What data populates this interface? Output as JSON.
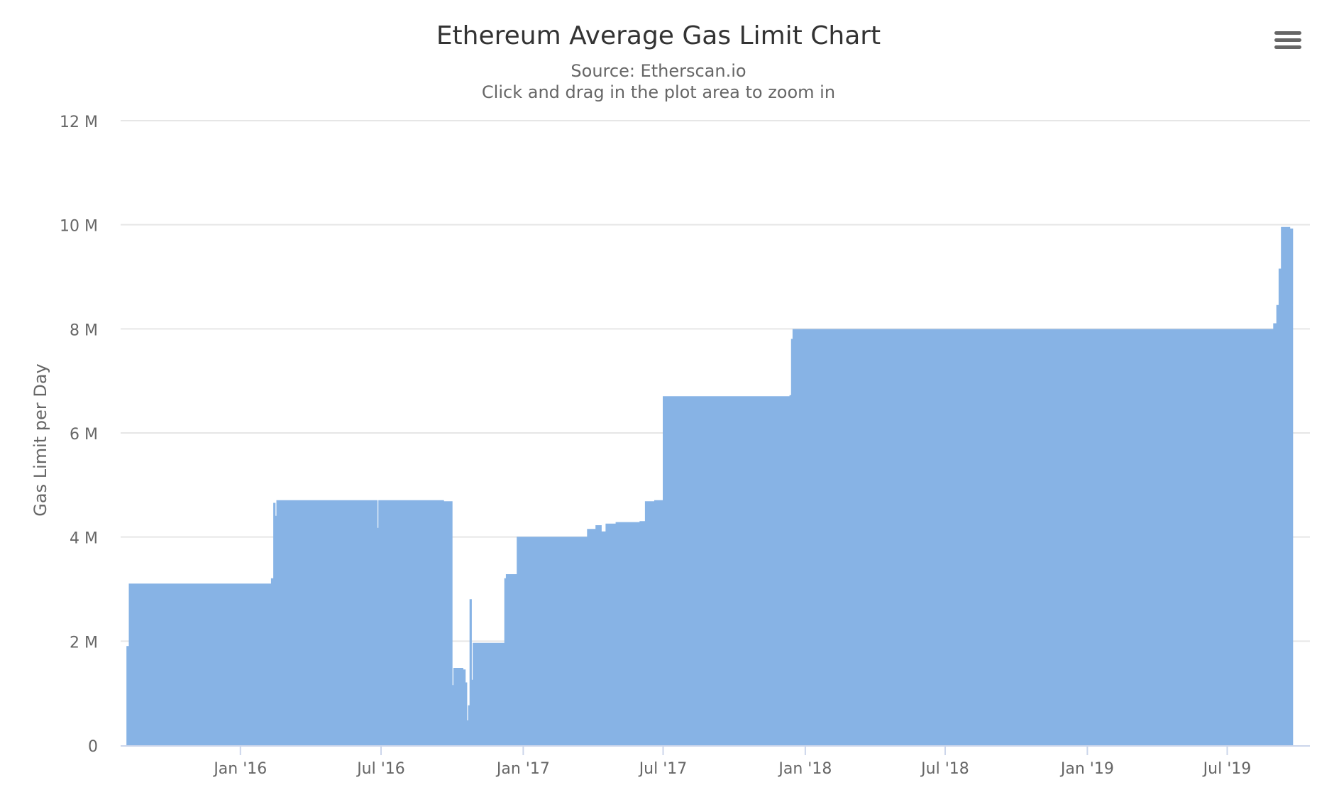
{
  "colors": {
    "series": "#87b3e5",
    "grid": "#e6e6e6",
    "axis_text": "#666666",
    "title_text": "#333333"
  },
  "toolbar": {
    "menu_icon": "hamburger-menu-icon"
  },
  "chart_data": {
    "type": "area",
    "title": "Ethereum Average Gas Limit Chart",
    "subtitle": "Source: Etherscan.io",
    "subtitle2": "Click and drag in the plot area to zoom in",
    "xlabel": "",
    "ylabel": "Gas Limit per Day",
    "x_type": "date",
    "xlim": [
      "2015-07-30",
      "2019-10-16"
    ],
    "ylim": [
      0,
      12000000
    ],
    "yticks": [
      0,
      2000000,
      4000000,
      6000000,
      8000000,
      10000000,
      12000000
    ],
    "ytick_labels": [
      "0",
      "2 M",
      "4 M",
      "6 M",
      "8 M",
      "10 M",
      "12 M"
    ],
    "xticks": [
      "2016-01-01",
      "2016-07-01",
      "2017-01-01",
      "2017-07-01",
      "2018-01-01",
      "2018-07-01",
      "2019-01-01",
      "2019-07-01"
    ],
    "xtick_labels": [
      "Jan '16",
      "Jul '16",
      "Jan '17",
      "Jul '17",
      "Jan '18",
      "Jul '18",
      "Jan '19",
      "Jul '19"
    ],
    "grid": true,
    "legend": false,
    "series": [
      {
        "points": [
          [
            "2015-08-07",
            1900000
          ],
          [
            "2015-08-10",
            3100000
          ],
          [
            "2016-02-06",
            3100000
          ],
          [
            "2016-02-10",
            3200000
          ],
          [
            "2016-02-13",
            4650000
          ],
          [
            "2016-02-15",
            4400000
          ],
          [
            "2016-02-17",
            4700000
          ],
          [
            "2016-06-25",
            4700000
          ],
          [
            "2016-06-26",
            4170000
          ],
          [
            "2016-06-28",
            4700000
          ],
          [
            "2016-09-20",
            4680000
          ],
          [
            "2016-09-29",
            4680000
          ],
          [
            "2016-10-01",
            1150000
          ],
          [
            "2016-10-03",
            1480000
          ],
          [
            "2016-10-15",
            1450000
          ],
          [
            "2016-10-18",
            1200000
          ],
          [
            "2016-10-20",
            470000
          ],
          [
            "2016-10-22",
            760000
          ],
          [
            "2016-10-24",
            2800000
          ],
          [
            "2016-10-26",
            1250000
          ],
          [
            "2016-10-28",
            1960000
          ],
          [
            "2016-12-05",
            1960000
          ],
          [
            "2016-12-08",
            3200000
          ],
          [
            "2016-12-10",
            3280000
          ],
          [
            "2016-12-20",
            3280000
          ],
          [
            "2016-12-24",
            4000000
          ],
          [
            "2017-03-15",
            4000000
          ],
          [
            "2017-03-25",
            4150000
          ],
          [
            "2017-04-05",
            4220000
          ],
          [
            "2017-04-12",
            4100000
          ],
          [
            "2017-04-18",
            4250000
          ],
          [
            "2017-05-01",
            4280000
          ],
          [
            "2017-06-01",
            4300000
          ],
          [
            "2017-06-08",
            4680000
          ],
          [
            "2017-06-20",
            4700000
          ],
          [
            "2017-06-28",
            4700000
          ],
          [
            "2017-07-01",
            6700000
          ],
          [
            "2017-12-12",
            6720000
          ],
          [
            "2017-12-14",
            7800000
          ],
          [
            "2017-12-16",
            7990000
          ],
          [
            "2019-08-27",
            7990000
          ],
          [
            "2019-08-30",
            8100000
          ],
          [
            "2019-09-03",
            8450000
          ],
          [
            "2019-09-06",
            9150000
          ],
          [
            "2019-09-09",
            9950000
          ],
          [
            "2019-09-20",
            9920000
          ],
          [
            "2019-09-21",
            9920000
          ]
        ]
      }
    ]
  }
}
